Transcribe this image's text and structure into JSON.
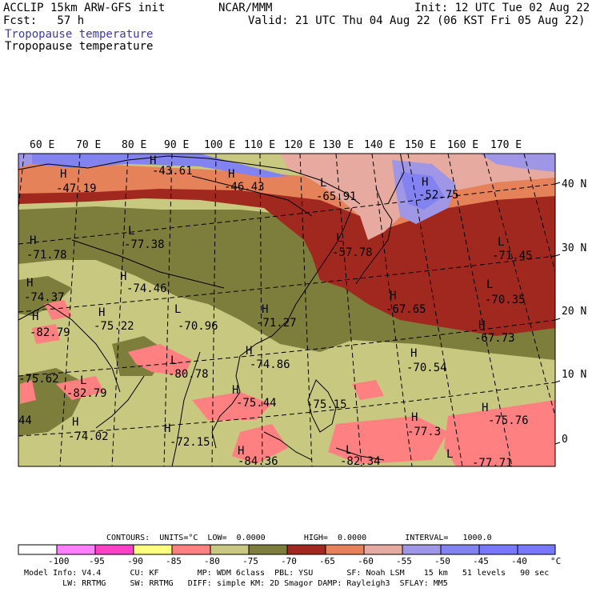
{
  "header": {
    "model_title": "ACCLIP 15km ARW-GFS init",
    "forecast": "Fcst:   57 h",
    "center": "NCAR/MMM",
    "init": "Init: 12 UTC Tue 02 Aug 22",
    "valid": "Valid: 21 UTC Thu 04 Aug 22 (06 KST Fri 05 Aug 22)",
    "field_label_1": "Tropopause temperature",
    "field_label_2": "Tropopause temperature"
  },
  "longitude_labels": [
    "60 E",
    "70 E",
    "80 E",
    "90 E",
    "100 E",
    "110 E",
    "120 E",
    "130 E",
    "140 E",
    "150 E",
    "160 E",
    "170 E"
  ],
  "latitude_labels": [
    "40 N",
    "30 N",
    "20 N",
    "10 N",
    "0"
  ],
  "highs": [
    {
      "label": "H",
      "value": "-47.19"
    },
    {
      "label": "H",
      "value": "-43.61"
    },
    {
      "label": "H",
      "value": "-46.43"
    },
    {
      "label": "H",
      "value": "-71.78"
    },
    {
      "label": "H",
      "value": "-74.37"
    },
    {
      "label": "H",
      "value": "-82.79"
    },
    {
      "label": "H",
      "value": "-75.22"
    },
    {
      "label": "H",
      "value": "-74.46"
    },
    {
      "label": "H",
      "value": "-71.27"
    },
    {
      "label": "H",
      "value": "-74.86"
    },
    {
      "label": "H",
      "value": "-75.62"
    },
    {
      "label": "H",
      "value": "-75.44"
    },
    {
      "label": "H",
      "value": "-74.02"
    },
    {
      "label": "H",
      "value": "-72.15"
    },
    {
      "label": "H",
      "value": "-67.65"
    },
    {
      "label": "H",
      "value": "-70.54"
    },
    {
      "label": "H",
      "value": "-67.73"
    },
    {
      "label": "H",
      "value": "-77.3"
    },
    {
      "label": "H",
      "value": "-75.76"
    },
    {
      "label": "H",
      "value": "-84.36"
    },
    {
      "label": "H",
      "value": "-52.75"
    }
  ],
  "lows": [
    {
      "label": "L",
      "value": "-77.38"
    },
    {
      "label": "L",
      "value": "-70.96"
    },
    {
      "label": "L",
      "value": "-65.91"
    },
    {
      "label": "L",
      "value": "-57.78"
    },
    {
      "label": "L",
      "value": "-71.45"
    },
    {
      "label": "L",
      "value": "-70.35"
    },
    {
      "label": "L",
      "value": "-80.78"
    },
    {
      "label": "L",
      "value": "-82.79"
    },
    {
      "label": "L",
      "value": "-82.34"
    },
    {
      "label": "L",
      "value": "-77.71"
    },
    {
      "label": "L",
      "value": "-75.15"
    }
  ],
  "extra_numbers": [
    "44"
  ],
  "contour_info": "CONTOURS:  UNITS=°C  LOW=  0.0000        HIGH=  0.0000        INTERVAL=   1000.0",
  "colorbar": {
    "ticks": [
      "-100",
      "-95",
      "-90",
      "-85",
      "-80",
      "-75",
      "-70",
      "-65",
      "-60",
      "-55",
      "-50",
      "-45",
      "-40"
    ],
    "unit": "°C",
    "colors": [
      "#ffffff",
      "#ff80ff",
      "#ff40c8",
      "#ffff80",
      "#ff8080",
      "#c8c880",
      "#7d7d3c",
      "#a0281e",
      "#e6825a",
      "#e6aaa0",
      "#a096e6",
      "#8282f0",
      "#7878ff"
    ]
  },
  "footer": {
    "line1": "Model Info: V4.4      CU: KF        MP: WDM 6class  PBL: YSU       SF: Noah LSM    15 km   51 levels   90 sec",
    "line2": "        LW: RRTMG     SW: RRTMG   DIFF: simple KM: 2D Smagor DAMP: Rayleigh3  SFLAY: MM5"
  }
}
